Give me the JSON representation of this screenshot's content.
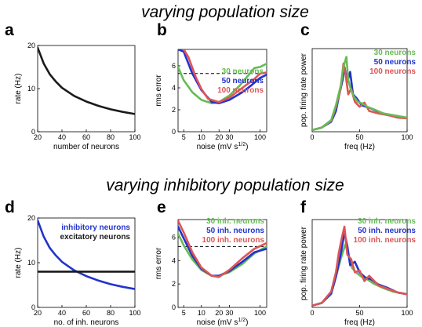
{
  "titles": {
    "top": "varying population size",
    "bottom": "varying inhibitory population size"
  },
  "colors": {
    "black": "#1a1a1a",
    "blue": "#2233cc",
    "green": "#66bb55",
    "red": "#dd5555",
    "dashed": "#000000"
  },
  "chart_data": [
    {
      "id": "a",
      "letter": "a",
      "type": "line",
      "xlabel": "number of neurons",
      "ylabel": "rate (Hz)",
      "xlim": [
        20,
        100
      ],
      "ylim": [
        0,
        20
      ],
      "xticks": [
        20,
        40,
        60,
        80,
        100
      ],
      "yticks": [
        0,
        10,
        20
      ],
      "series": [
        {
          "color": "black",
          "x": [
            20,
            25,
            30,
            35,
            40,
            50,
            60,
            70,
            80,
            90,
            100
          ],
          "y": [
            19.5,
            15.8,
            13.3,
            11.6,
            10.2,
            8.3,
            7.0,
            6.0,
            5.2,
            4.6,
            4.1
          ]
        }
      ]
    },
    {
      "id": "b",
      "letter": "b",
      "type": "line",
      "xlabel": "noise (mV s",
      "xlabel_sup": "1/2",
      "xlabel_end": ")",
      "ylabel": "rms error",
      "xscale": "log",
      "xlim": [
        4,
        130
      ],
      "ylim": [
        0,
        7.5
      ],
      "xticks": [
        5,
        10,
        20,
        30,
        100
      ],
      "yticks": [
        0,
        2,
        4,
        6
      ],
      "dashed_y": 5.3,
      "legend": [
        {
          "label": "30 neurons",
          "color": "green"
        },
        {
          "label": "50 neurons",
          "color": "blue"
        },
        {
          "label": "100 neurons",
          "color": "red"
        }
      ],
      "series": [
        {
          "color": "green",
          "x": [
            4,
            5,
            7,
            10,
            15,
            20,
            30,
            45,
            60,
            80,
            100,
            130
          ],
          "y": [
            5.9,
            4.7,
            3.6,
            2.9,
            2.6,
            2.7,
            3.3,
            4.2,
            5.0,
            5.8,
            5.9,
            6.2
          ]
        },
        {
          "color": "blue",
          "x": [
            4,
            5,
            7,
            10,
            15,
            20,
            30,
            50,
            70,
            100,
            130
          ],
          "y": [
            7.5,
            7.3,
            5.3,
            3.8,
            2.7,
            2.6,
            2.9,
            3.6,
            4.2,
            4.9,
            5.2
          ]
        },
        {
          "color": "red",
          "x": [
            5,
            6,
            8,
            10,
            13,
            20,
            30,
            50,
            80,
            100,
            130
          ],
          "y": [
            7.5,
            6.8,
            5.0,
            3.9,
            3.0,
            2.7,
            3.1,
            4.0,
            4.8,
            5.3,
            5.4
          ]
        }
      ]
    },
    {
      "id": "c",
      "letter": "c",
      "type": "line",
      "xlabel": "freq (Hz)",
      "ylabel": "pop. firing rate power",
      "xlim": [
        0,
        100
      ],
      "ylim": [
        0,
        1
      ],
      "xticks": [
        0,
        50,
        100
      ],
      "yticks": [],
      "legend": [
        {
          "label": "30 neurons",
          "color": "green"
        },
        {
          "label": "50 neurons",
          "color": "blue"
        },
        {
          "label": "100 neurons",
          "color": "red"
        }
      ],
      "series": [
        {
          "color": "blue",
          "x": [
            0,
            10,
            20,
            25,
            28,
            32,
            34,
            37,
            40,
            43,
            47,
            52,
            57,
            62,
            70,
            80,
            90,
            100
          ],
          "y": [
            0.02,
            0.05,
            0.12,
            0.25,
            0.42,
            0.62,
            0.78,
            0.6,
            0.72,
            0.45,
            0.4,
            0.32,
            0.3,
            0.28,
            0.24,
            0.2,
            0.18,
            0.17
          ]
        },
        {
          "color": "red",
          "x": [
            0,
            10,
            20,
            25,
            30,
            33,
            35,
            38,
            41,
            45,
            50,
            55,
            60,
            70,
            80,
            90,
            100
          ],
          "y": [
            0.02,
            0.05,
            0.13,
            0.3,
            0.52,
            0.82,
            0.7,
            0.45,
            0.52,
            0.36,
            0.3,
            0.35,
            0.25,
            0.22,
            0.2,
            0.17,
            0.16
          ]
        },
        {
          "color": "green",
          "x": [
            0,
            10,
            20,
            25,
            30,
            33,
            36,
            38,
            41,
            44,
            48,
            53,
            58,
            65,
            75,
            85,
            100
          ],
          "y": [
            0.02,
            0.05,
            0.14,
            0.32,
            0.55,
            0.78,
            0.9,
            0.62,
            0.5,
            0.42,
            0.36,
            0.34,
            0.3,
            0.27,
            0.22,
            0.2,
            0.17
          ]
        }
      ]
    },
    {
      "id": "d",
      "letter": "d",
      "type": "line",
      "xlabel": "no. of inh. neurons",
      "ylabel": "rate (Hz)",
      "xlim": [
        20,
        100
      ],
      "ylim": [
        0,
        20
      ],
      "xticks": [
        20,
        40,
        60,
        80,
        100
      ],
      "yticks": [
        0,
        10,
        20
      ],
      "legend": [
        {
          "label": "inhibitory neurons",
          "color": "blue"
        },
        {
          "label": "excitatory neurons",
          "color": "black"
        }
      ],
      "series": [
        {
          "name": "inhibitory neurons",
          "color": "blue",
          "x": [
            20,
            25,
            30,
            35,
            40,
            50,
            60,
            70,
            80,
            90,
            100
          ],
          "y": [
            19.5,
            15.8,
            13.3,
            11.6,
            10.2,
            8.3,
            7.0,
            6.0,
            5.2,
            4.6,
            4.1
          ]
        },
        {
          "name": "excitatory neurons",
          "color": "black",
          "x": [
            20,
            40,
            60,
            80,
            100
          ],
          "y": [
            8.0,
            8.0,
            8.0,
            8.0,
            8.0
          ]
        }
      ]
    },
    {
      "id": "e",
      "letter": "e",
      "type": "line",
      "xlabel": "noise (mV s",
      "xlabel_sup": "1/2",
      "xlabel_end": ")",
      "ylabel": "rms error",
      "xscale": "log",
      "xlim": [
        4,
        130
      ],
      "ylim": [
        0,
        7.5
      ],
      "xticks": [
        5,
        10,
        20,
        30,
        100
      ],
      "yticks": [
        0,
        2,
        4,
        6
      ],
      "dashed_y": 5.2,
      "legend": [
        {
          "label": "30 inh. neurons",
          "color": "green"
        },
        {
          "label": "50  inh. neurons",
          "color": "blue"
        },
        {
          "label": "100 inh. neurons",
          "color": "red"
        }
      ],
      "series": [
        {
          "color": "green",
          "x": [
            4,
            5,
            7,
            10,
            15,
            20,
            30,
            50,
            80,
            130
          ],
          "y": [
            6.3,
            5.3,
            4.1,
            3.2,
            2.7,
            2.7,
            3.0,
            3.7,
            4.6,
            5.2
          ]
        },
        {
          "color": "blue",
          "x": [
            4,
            5,
            7,
            10,
            15,
            20,
            30,
            50,
            80,
            130
          ],
          "y": [
            6.9,
            5.9,
            4.4,
            3.3,
            2.7,
            2.7,
            3.1,
            3.9,
            4.7,
            5.0
          ]
        },
        {
          "color": "red",
          "x": [
            4,
            5,
            7,
            10,
            15,
            20,
            30,
            50,
            80,
            130
          ],
          "y": [
            7.4,
            6.4,
            4.7,
            3.4,
            2.7,
            2.6,
            3.2,
            4.2,
            5.0,
            5.5
          ]
        }
      ]
    },
    {
      "id": "f",
      "letter": "f",
      "type": "line",
      "xlabel": "freq (Hz)",
      "ylabel": "pop. firing rate power",
      "xlim": [
        0,
        100
      ],
      "ylim": [
        0,
        1
      ],
      "xticks": [
        0,
        50,
        100
      ],
      "yticks": [],
      "legend": [
        {
          "label": "30 inh. neurons",
          "color": "green"
        },
        {
          "label": "50  inh. neurons",
          "color": "blue"
        },
        {
          "label": "100 inh. neurons",
          "color": "red"
        }
      ],
      "series": [
        {
          "color": "green",
          "x": [
            0,
            10,
            20,
            25,
            30,
            35,
            38,
            42,
            46,
            52,
            58,
            65,
            75,
            85,
            100
          ],
          "y": [
            0.02,
            0.05,
            0.15,
            0.35,
            0.55,
            0.72,
            0.6,
            0.45,
            0.4,
            0.35,
            0.32,
            0.27,
            0.22,
            0.18,
            0.15
          ]
        },
        {
          "color": "blue",
          "x": [
            0,
            10,
            20,
            25,
            30,
            34,
            37,
            40,
            45,
            50,
            56,
            62,
            70,
            80,
            90,
            100
          ],
          "y": [
            0.02,
            0.05,
            0.16,
            0.35,
            0.6,
            0.85,
            0.7,
            0.48,
            0.52,
            0.4,
            0.34,
            0.32,
            0.26,
            0.22,
            0.17,
            0.15
          ]
        },
        {
          "color": "red",
          "x": [
            0,
            10,
            20,
            25,
            28,
            31,
            34,
            37,
            41,
            45,
            50,
            55,
            60,
            70,
            80,
            90,
            100
          ],
          "y": [
            0.02,
            0.05,
            0.18,
            0.4,
            0.62,
            0.78,
            0.92,
            0.6,
            0.55,
            0.4,
            0.42,
            0.3,
            0.36,
            0.25,
            0.21,
            0.17,
            0.15
          ]
        }
      ]
    }
  ]
}
